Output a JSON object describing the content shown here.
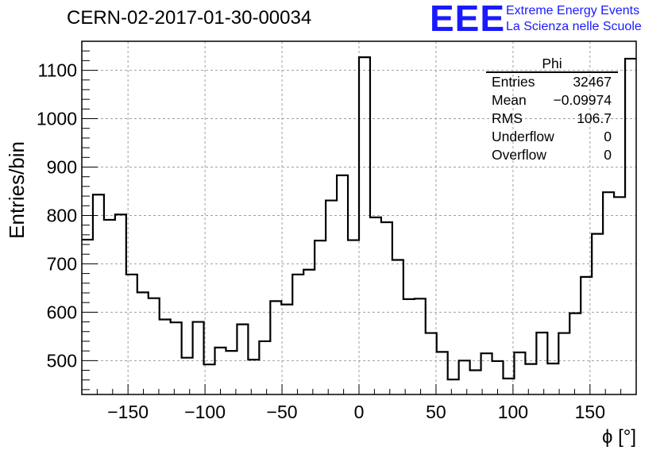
{
  "header": {
    "run_title": "CERN-02-2017-01-30-00034",
    "logo_text": "EEE",
    "logo_line1": "Extreme Energy Events",
    "logo_line2": "La Scienza nelle Scuole"
  },
  "stats_box": {
    "title": "Phi",
    "rows": [
      {
        "label": "Entries",
        "value": "32467"
      },
      {
        "label": "Mean",
        "value": "−0.09974"
      },
      {
        "label": "RMS",
        "value": "106.7"
      },
      {
        "label": "Underflow",
        "value": "0"
      },
      {
        "label": "Overflow",
        "value": "0"
      }
    ]
  },
  "colors": {
    "brand": "#1a1aff",
    "line": "#000000",
    "grid": "#9e9e9e"
  },
  "chart_data": {
    "type": "histogram",
    "title": "CERN-02-2017-01-30-00034",
    "xlabel": "ϕ [°]",
    "ylabel": "Entries/bin",
    "xlim": [
      -180,
      180
    ],
    "ylim": [
      430,
      1160
    ],
    "grid": true,
    "bin_width": 7.2,
    "x_ticks": [
      -150,
      -100,
      -50,
      0,
      50,
      100,
      150
    ],
    "x_tick_labels": [
      "−150",
      "−100",
      "−50",
      "0",
      "50",
      "100",
      "150"
    ],
    "y_ticks": [
      500,
      600,
      700,
      800,
      900,
      1000,
      1100
    ],
    "y_tick_labels": [
      "500",
      "600",
      "700",
      "800",
      "900",
      "1000",
      "1100"
    ],
    "values": [
      750,
      843,
      791,
      802,
      678,
      641,
      629,
      585,
      579,
      506,
      580,
      492,
      527,
      520,
      575,
      502,
      540,
      623,
      616,
      678,
      688,
      748,
      831,
      883,
      749,
      1127,
      796,
      786,
      708,
      627,
      628,
      557,
      518,
      461,
      500,
      480,
      515,
      499,
      463,
      517,
      493,
      558,
      494,
      557,
      598,
      673,
      762,
      848,
      838,
      1124
    ]
  }
}
